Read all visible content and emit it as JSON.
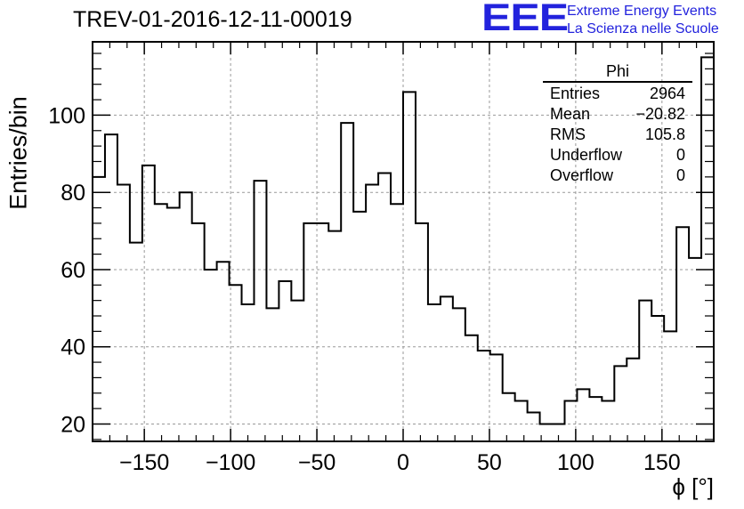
{
  "header": {
    "run_label": "TREV-01-2016-12-11-00019",
    "logo_text": "EEE",
    "org_line1": "Extreme Energy Events",
    "org_line2": "La Scienza nelle Scuole"
  },
  "stats_box": {
    "title": "Phi",
    "rows": [
      {
        "label": "Entries",
        "value": "2964"
      },
      {
        "label": "Mean",
        "value": "−20.82"
      },
      {
        "label": "RMS",
        "value": "105.8"
      },
      {
        "label": "Underflow",
        "value": "0"
      },
      {
        "label": "Overflow",
        "value": "0"
      }
    ]
  },
  "colors": {
    "logo": "#2222dd",
    "histogram_line": "#000000",
    "grid": "#999999"
  },
  "chart_data": {
    "type": "bar",
    "style": "step-histogram",
    "title": "TREV-01-2016-12-11-00019",
    "xlabel": "ϕ [°]",
    "ylabel": "Entries/bin",
    "xlim": [
      -180,
      180
    ],
    "ylim": [
      15.5,
      119
    ],
    "grid": true,
    "bin_width": 7.2,
    "bin_edges_start": -180,
    "x_ticks": [
      -150,
      -100,
      -50,
      0,
      50,
      100,
      150
    ],
    "x_tick_labels": [
      "−150",
      "−100",
      "−50",
      "0",
      "50",
      "100",
      "150"
    ],
    "y_ticks": [
      20,
      40,
      60,
      80,
      100
    ],
    "y_tick_labels": [
      "20",
      "40",
      "60",
      "80",
      "100"
    ],
    "values": [
      84,
      95,
      82,
      67,
      87,
      77,
      76,
      80,
      72,
      60,
      62,
      56,
      51,
      83,
      50,
      57,
      52,
      72,
      72,
      70,
      98,
      75,
      82,
      85,
      77,
      106,
      72,
      51,
      53,
      50,
      43,
      39,
      38,
      28,
      26,
      23,
      20,
      20,
      26,
      29,
      27,
      26,
      35,
      37,
      52,
      48,
      44,
      71,
      63,
      115
    ]
  }
}
